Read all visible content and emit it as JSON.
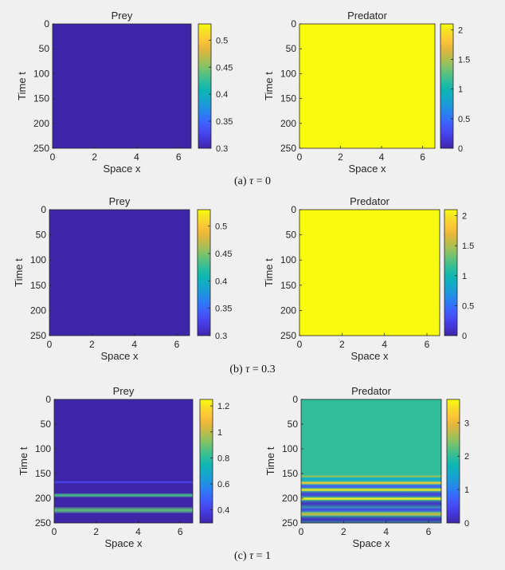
{
  "colors": {
    "parula": [
      "#3e26a8",
      "#4435d6",
      "#4748f1",
      "#3d61fe",
      "#2b7cf4",
      "#1f94e0",
      "#14a8cb",
      "#0db5b3",
      "#2bbd9b",
      "#58c27f",
      "#8bc263",
      "#bcbc4a",
      "#e6b63b",
      "#fdc537",
      "#f6dd26",
      "#f9fb0e"
    ],
    "background": "#f0f0f0"
  },
  "captions": [
    {
      "prefix": "(a) ",
      "tau": "τ",
      "rest": " = 0"
    },
    {
      "prefix": "(b) ",
      "tau": "τ",
      "rest": " = 0.3"
    },
    {
      "prefix": "(c) ",
      "tau": "τ",
      "rest": " = 1"
    }
  ],
  "chart_data": [
    {
      "type": "heatmap",
      "title": "Prey",
      "xlabel": "Space x",
      "ylabel": "Time t",
      "xlim": [
        0,
        6.6
      ],
      "ylim": [
        0,
        250
      ],
      "y_reversed": true,
      "xticks": [
        0,
        2,
        4,
        6
      ],
      "yticks": [
        0,
        50,
        100,
        150,
        200,
        250
      ],
      "clim": [
        0.3,
        0.53
      ],
      "colorbar_ticks": [
        "0.3",
        "0.35",
        "0.4",
        "0.45",
        "0.5"
      ],
      "colorbar_tick_values": [
        0.3,
        0.35,
        0.4,
        0.45,
        0.5
      ],
      "background_value": 0.3,
      "bands": []
    },
    {
      "type": "heatmap",
      "title": "Predator",
      "xlabel": "Space x",
      "ylabel": "Time t",
      "xlim": [
        0,
        6.6
      ],
      "ylim": [
        0,
        250
      ],
      "y_reversed": true,
      "xticks": [
        0,
        2,
        4,
        6
      ],
      "yticks": [
        0,
        50,
        100,
        150,
        200,
        250
      ],
      "clim": [
        0,
        2.1
      ],
      "colorbar_ticks": [
        "0",
        "0.5",
        "1",
        "1.5",
        "2"
      ],
      "colorbar_tick_values": [
        0,
        0.5,
        1,
        1.5,
        2
      ],
      "background_value": 2.1,
      "bands": []
    },
    {
      "type": "heatmap",
      "title": "Prey",
      "xlabel": "Space x",
      "ylabel": "Time t",
      "xlim": [
        0,
        6.6
      ],
      "ylim": [
        0,
        250
      ],
      "y_reversed": true,
      "xticks": [
        0,
        2,
        4,
        6
      ],
      "yticks": [
        0,
        50,
        100,
        150,
        200,
        250
      ],
      "clim": [
        0.3,
        0.53
      ],
      "colorbar_ticks": [
        "0.3",
        "0.35",
        "0.4",
        "0.45",
        "0.5"
      ],
      "colorbar_tick_values": [
        0.3,
        0.35,
        0.4,
        0.45,
        0.5
      ],
      "background_value": 0.3,
      "bands": []
    },
    {
      "type": "heatmap",
      "title": "Predator",
      "xlabel": "Space x",
      "ylabel": "Time t",
      "xlim": [
        0,
        6.6
      ],
      "ylim": [
        0,
        250
      ],
      "y_reversed": true,
      "xticks": [
        0,
        2,
        4,
        6
      ],
      "yticks": [
        0,
        50,
        100,
        150,
        200,
        250
      ],
      "clim": [
        0,
        2.1
      ],
      "colorbar_ticks": [
        "0",
        "0.5",
        "1",
        "1.5",
        "2"
      ],
      "colorbar_tick_values": [
        0,
        0.5,
        1,
        1.5,
        2
      ],
      "background_value": 2.1,
      "bands": []
    },
    {
      "type": "heatmap",
      "title": "Prey",
      "xlabel": "Space x",
      "ylabel": "Time t",
      "xlim": [
        0,
        6.6
      ],
      "ylim": [
        0,
        250
      ],
      "y_reversed": true,
      "xticks": [
        0,
        2,
        4,
        6
      ],
      "yticks": [
        0,
        50,
        100,
        150,
        200,
        250
      ],
      "clim": [
        0.3,
        1.25
      ],
      "colorbar_ticks": [
        "0.4",
        "0.6",
        "0.8",
        "1",
        "1.2"
      ],
      "colorbar_tick_values": [
        0.4,
        0.6,
        0.8,
        1,
        1.2
      ],
      "background_value": 0.3,
      "bands": [
        {
          "t0": 165,
          "t1": 170,
          "value": 0.42
        },
        {
          "t0": 190,
          "t1": 198,
          "value": 0.85
        },
        {
          "t0": 218,
          "t1": 230,
          "value": 0.88
        }
      ]
    },
    {
      "type": "heatmap",
      "title": "Predator",
      "xlabel": "Space x",
      "ylabel": "Time t",
      "xlim": [
        0,
        6.6
      ],
      "ylim": [
        0,
        250
      ],
      "y_reversed": true,
      "xticks": [
        0,
        2,
        4,
        6
      ],
      "yticks": [
        0,
        50,
        100,
        150,
        200,
        250
      ],
      "clim": [
        0,
        3.7
      ],
      "colorbar_ticks": [
        "0",
        "1",
        "2",
        "3"
      ],
      "colorbar_tick_values": [
        0,
        1,
        2,
        3
      ],
      "background_value": 2.0,
      "bands": [
        {
          "t0": 153,
          "t1": 158,
          "value": 2.5
        },
        {
          "t0": 158,
          "t1": 166,
          "value": 1.5
        },
        {
          "t0": 166,
          "t1": 172,
          "value": 3.2
        },
        {
          "t0": 172,
          "t1": 180,
          "value": 0.6
        },
        {
          "t0": 180,
          "t1": 186,
          "value": 3.5
        },
        {
          "t0": 186,
          "t1": 198,
          "value": 0.3
        },
        {
          "t0": 198,
          "t1": 204,
          "value": 3.6
        },
        {
          "t0": 204,
          "t1": 218,
          "value": 0.15
        },
        {
          "t0": 218,
          "t1": 228,
          "value": 0.4
        },
        {
          "t0": 228,
          "t1": 236,
          "value": 2.8
        },
        {
          "t0": 236,
          "t1": 250,
          "value": 0.1
        }
      ]
    }
  ]
}
